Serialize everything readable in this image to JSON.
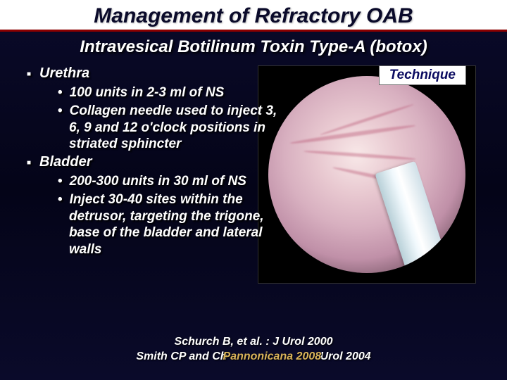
{
  "title": {
    "text": "Management of Refractory OAB",
    "fontsize": 30,
    "color": "#0a0a2a",
    "underline_color": "#8b0000"
  },
  "subtitle": {
    "text": "Intravesical Botilinum Toxin Type-A (botox)",
    "fontsize": 24,
    "color": "#ffffff"
  },
  "technique_label": {
    "text": "Technique",
    "fontsize": 19,
    "bg": "#ffffff",
    "color": "#0a0a60"
  },
  "body": {
    "fontsize_l1": 20,
    "fontsize_l2": 19,
    "color": "#ffffff",
    "items": [
      {
        "heading": "Urethra",
        "sub": [
          "100 units in 2-3 ml of NS",
          "Collagen needle used to inject 3, 6, 9 and 12 o'clock positions in striated sphincter"
        ]
      },
      {
        "heading": "Bladder",
        "sub": [
          "200-300 units in 30 ml of NS",
          "Inject 30-40 sites within the detrusor, targeting the trigone, base of the bladder and lateral walls"
        ]
      }
    ]
  },
  "references": {
    "fontsize": 16,
    "lines": [
      "Schurch B, et al. : J Urol 2000",
      "Smith CP and Chancellor MB: J Urol 2004"
    ],
    "overlay_text": "Pannonicana 2008",
    "overlay_color": "#d9b35a"
  },
  "photo": {
    "bg": "#000000",
    "tissue_gradient": [
      "#f8e8e8",
      "#e8c8d0",
      "#d8b0c0",
      "#c090a8",
      "#705060",
      "#201818"
    ],
    "vein_color": "rgba(176,64,96,0.35)",
    "needle_gradient": [
      "#b8d0d8",
      "#f0f8fc",
      "#ffffff",
      "#d0e0e8"
    ]
  },
  "background_gradient": [
    "#0a0a2a",
    "#040418",
    "#0a0a2a"
  ]
}
